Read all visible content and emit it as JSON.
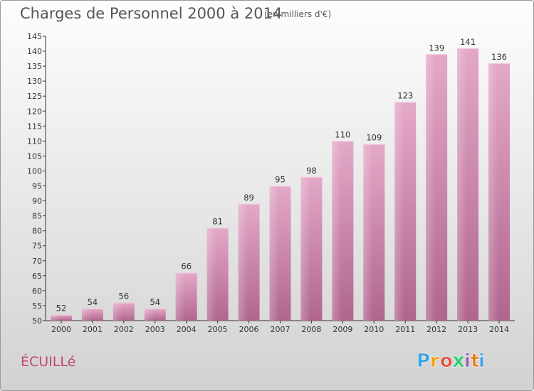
{
  "chart_data": {
    "type": "bar",
    "title": "Charges de Personnel 2000 à 2014",
    "subtitle": "(en milliers d'€)",
    "categories": [
      "2000",
      "2001",
      "2002",
      "2003",
      "2004",
      "2005",
      "2006",
      "2007",
      "2008",
      "2009",
      "2010",
      "2011",
      "2012",
      "2013",
      "2014"
    ],
    "values": [
      52,
      54,
      56,
      54,
      66,
      81,
      89,
      95,
      98,
      110,
      109,
      123,
      139,
      141,
      136
    ],
    "ylim": [
      50,
      145
    ],
    "yticks": [
      50,
      55,
      60,
      65,
      70,
      75,
      80,
      85,
      90,
      95,
      100,
      105,
      110,
      115,
      120,
      125,
      130,
      135,
      140,
      145
    ],
    "xlabel": "",
    "ylabel": "",
    "grid": false,
    "bar_color": "#d98cb4"
  },
  "commune": "ÉCUILLé",
  "brand": {
    "letters": [
      "P",
      "r",
      "o",
      "x",
      "i",
      "t",
      "i"
    ],
    "colors": [
      "#3aa0dc",
      "#f39c12",
      "#e74c3c",
      "#2ecc71",
      "#9b59b6",
      "#e67e22",
      "#3aa0dc"
    ]
  }
}
